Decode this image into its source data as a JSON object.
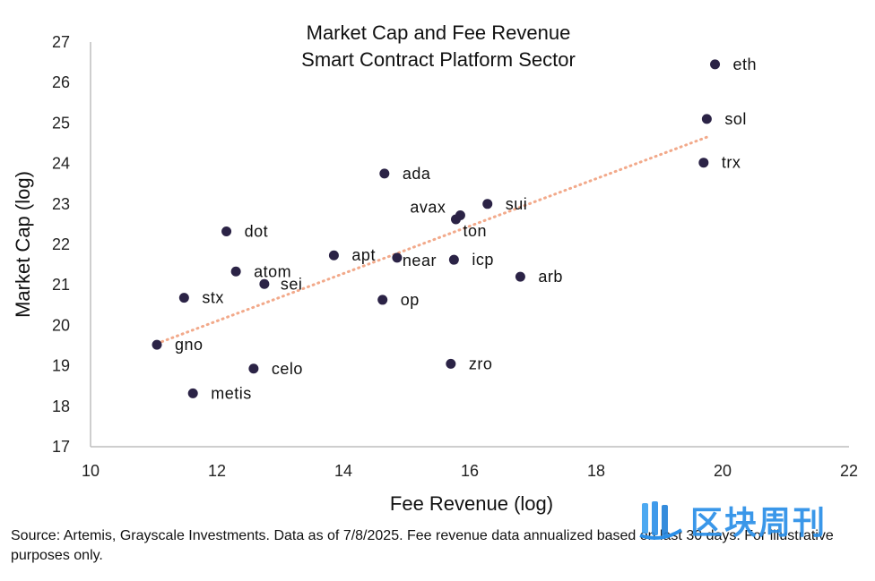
{
  "chart_data": {
    "type": "scatter",
    "title": "Market Cap and Fee Revenue",
    "subtitle": "Smart Contract Platform Sector",
    "xlabel": "Fee Revenue (log)",
    "ylabel": "Market Cap (log)",
    "xlim": [
      10,
      22
    ],
    "ylim": [
      17,
      27
    ],
    "xticks": [
      10,
      12,
      14,
      16,
      18,
      20,
      22
    ],
    "yticks": [
      17,
      18,
      19,
      20,
      21,
      22,
      23,
      24,
      25,
      26,
      27
    ],
    "grid": false,
    "point_color": "#2b2346",
    "trendline": {
      "style": "dotted",
      "color": "#f2a98a",
      "from": [
        11.05,
        19.55
      ],
      "to": [
        19.75,
        24.65
      ]
    },
    "points": [
      {
        "label": "eth",
        "x": 19.88,
        "y": 26.45
      },
      {
        "label": "sol",
        "x": 19.75,
        "y": 25.1
      },
      {
        "label": "trx",
        "x": 19.7,
        "y": 24.02
      },
      {
        "label": "ada",
        "x": 14.65,
        "y": 23.75
      },
      {
        "label": "sui",
        "x": 16.28,
        "y": 23.0
      },
      {
        "label": "avax",
        "x": 15.85,
        "y": 22.72
      },
      {
        "label": "ton",
        "x": 15.78,
        "y": 22.62
      },
      {
        "label": "dot",
        "x": 12.15,
        "y": 22.32
      },
      {
        "label": "apt",
        "x": 13.85,
        "y": 21.73
      },
      {
        "label": "near",
        "x": 14.85,
        "y": 21.67
      },
      {
        "label": "icp",
        "x": 15.75,
        "y": 21.62
      },
      {
        "label": "atom",
        "x": 12.3,
        "y": 21.33
      },
      {
        "label": "arb",
        "x": 16.8,
        "y": 21.2
      },
      {
        "label": "sei",
        "x": 12.75,
        "y": 21.02
      },
      {
        "label": "stx",
        "x": 11.48,
        "y": 20.68
      },
      {
        "label": "op",
        "x": 14.62,
        "y": 20.63
      },
      {
        "label": "gno",
        "x": 11.05,
        "y": 19.52
      },
      {
        "label": "zro",
        "x": 15.7,
        "y": 19.05
      },
      {
        "label": "celo",
        "x": 12.58,
        "y": 18.93
      },
      {
        "label": "metis",
        "x": 11.62,
        "y": 18.32
      }
    ]
  },
  "footnote": "Source: Artemis, Grayscale Investments. Data as of 7/8/2025. Fee revenue data annualized based on last 30 days. For illustrative purposes only.",
  "watermark": {
    "text": "区块周刊",
    "icon": "bar-logo-icon",
    "color": "#2a8fe8"
  }
}
